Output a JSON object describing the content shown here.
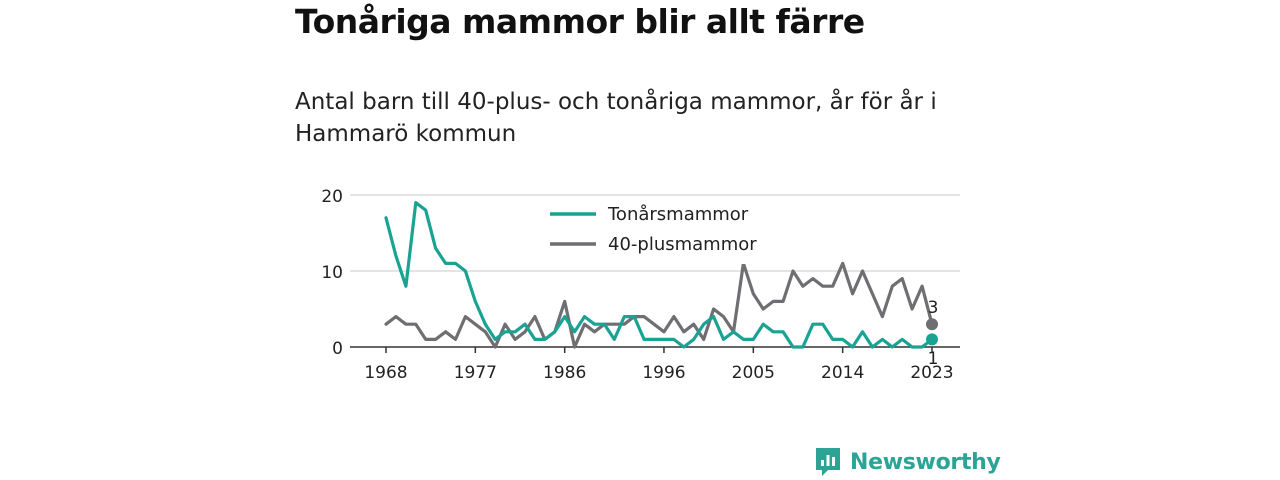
{
  "title": "Tonåriga mammor blir allt färre",
  "subtitle": "Antal barn till 40-plus- och tonåriga mammor, år för år i Hammarö kommun",
  "brand": {
    "name": "Newsworthy",
    "color": "#2ba495"
  },
  "chart_data": {
    "type": "line",
    "x": [
      1968,
      1969,
      1970,
      1971,
      1972,
      1973,
      1974,
      1975,
      1976,
      1977,
      1978,
      1979,
      1980,
      1981,
      1982,
      1983,
      1984,
      1985,
      1986,
      1987,
      1988,
      1989,
      1990,
      1991,
      1992,
      1993,
      1994,
      1995,
      1996,
      1997,
      1998,
      1999,
      2000,
      2001,
      2002,
      2003,
      2004,
      2005,
      2006,
      2007,
      2008,
      2009,
      2010,
      2011,
      2012,
      2013,
      2014,
      2015,
      2016,
      2017,
      2018,
      2019,
      2020,
      2021,
      2022,
      2023
    ],
    "x_ticks": [
      1968,
      1977,
      1986,
      1996,
      2005,
      2014,
      2023
    ],
    "y_ticks": [
      0,
      10,
      20
    ],
    "ylim": [
      0,
      20
    ],
    "grid": true,
    "legend_position": "top-center",
    "series": [
      {
        "name": "Tonårsmammor",
        "color": "#1aa393",
        "values": [
          17,
          12,
          8,
          19,
          18,
          13,
          11,
          11,
          10,
          6,
          3,
          1,
          2,
          2,
          3,
          1,
          1,
          2,
          4,
          2,
          4,
          3,
          3,
          1,
          4,
          4,
          1,
          1,
          1,
          1,
          0,
          1,
          3,
          4,
          1,
          2,
          1,
          1,
          3,
          2,
          2,
          0,
          0,
          3,
          3,
          1,
          1,
          0,
          2,
          0,
          1,
          0,
          1,
          0,
          0,
          1
        ]
      },
      {
        "name": "40-plusmammor",
        "color": "#6e6e73",
        "values": [
          3,
          4,
          3,
          3,
          1,
          1,
          2,
          1,
          4,
          3,
          2,
          0,
          3,
          1,
          2,
          4,
          1,
          2,
          6,
          0,
          3,
          2,
          3,
          3,
          3,
          4,
          4,
          3,
          2,
          4,
          2,
          3,
          1,
          5,
          4,
          2,
          11,
          7,
          5,
          6,
          6,
          10,
          8,
          9,
          8,
          8,
          11,
          7,
          10,
          7,
          4,
          8,
          9,
          5,
          8,
          3
        ]
      }
    ],
    "end_labels": [
      "1",
      "3"
    ]
  }
}
